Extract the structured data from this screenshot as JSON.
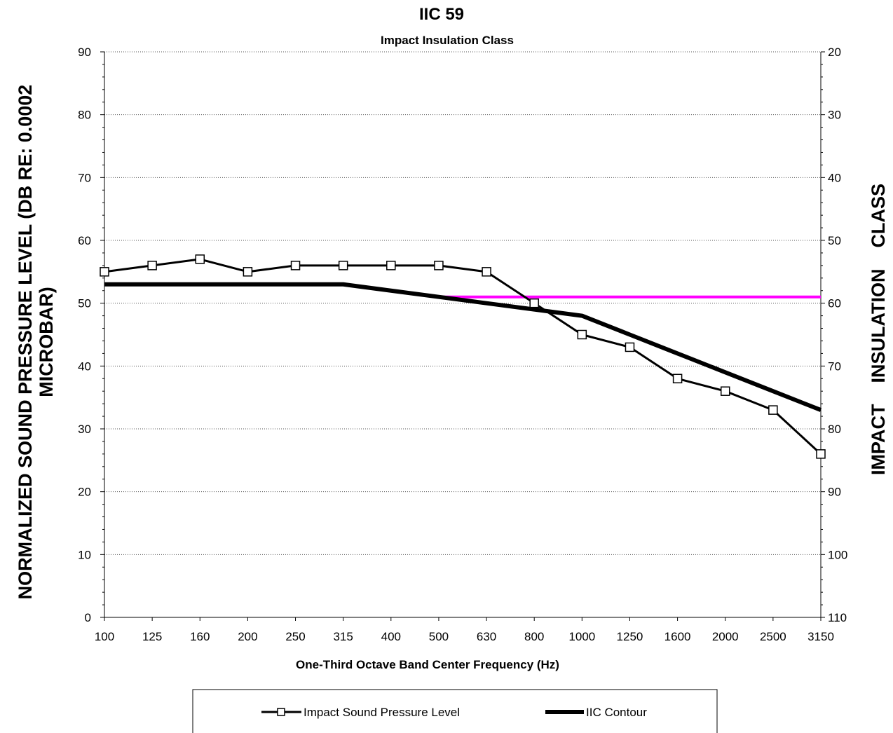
{
  "chart_data": {
    "type": "line",
    "title": "IIC 59",
    "subtitle": "Impact Insulation Class",
    "xlabel": "One-Third Octave Band Center Frequency (Hz)",
    "ylabel": "NORMALIZED SOUND PRESSURE LEVEL (DB RE: 0.0002",
    "ylabel_line2": "MICROBAR)",
    "y2label": "IMPACT    INSULATION    CLASS",
    "categories": [
      "100",
      "125",
      "160",
      "200",
      "250",
      "315",
      "400",
      "500",
      "630",
      "800",
      "1000",
      "1250",
      "1600",
      "2000",
      "2500",
      "3150"
    ],
    "ylim": [
      0,
      90
    ],
    "yticks": [
      0,
      10,
      20,
      30,
      40,
      50,
      60,
      70,
      80,
      90
    ],
    "y2ticks": [
      110,
      100,
      90,
      80,
      70,
      60,
      50,
      40,
      30,
      20
    ],
    "grid": true,
    "legend_position": "bottom",
    "series": [
      {
        "name": "Impact Sound Pressure Level",
        "values": [
          55,
          56,
          57,
          55,
          56,
          56,
          56,
          56,
          55,
          50,
          45,
          43,
          38,
          36,
          33,
          26
        ],
        "color": "#000000",
        "marker": "square"
      },
      {
        "name": "IIC Contour",
        "values": [
          53,
          53,
          53,
          53,
          53,
          53,
          52,
          51,
          50,
          49,
          48,
          45,
          42,
          39,
          36,
          33
        ],
        "color": "#000000",
        "marker": "none"
      }
    ],
    "reference_line": {
      "from": "500",
      "to": "3150",
      "value": 51,
      "color": "#ff00ff"
    }
  }
}
